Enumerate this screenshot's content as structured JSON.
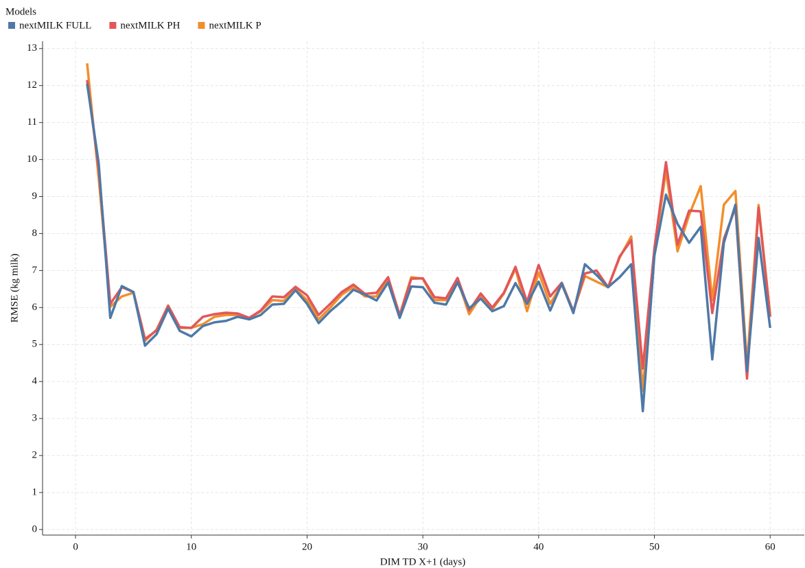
{
  "chart_data": {
    "type": "line",
    "legend_title": "Models",
    "x_label": "DIM TD X+1 (days)",
    "y_label": "RMSE (kg milk)",
    "x": [
      1,
      2,
      3,
      4,
      5,
      6,
      7,
      8,
      9,
      10,
      11,
      12,
      13,
      14,
      15,
      16,
      17,
      18,
      19,
      20,
      21,
      22,
      23,
      24,
      25,
      26,
      27,
      28,
      29,
      30,
      31,
      32,
      33,
      34,
      35,
      36,
      37,
      38,
      39,
      40,
      41,
      42,
      43,
      44,
      45,
      46,
      47,
      48,
      49,
      50,
      51,
      52,
      53,
      54,
      55,
      56,
      57,
      58,
      59,
      60
    ],
    "series": [
      {
        "name": "nextMILK FULL",
        "color": "#4e79a7",
        "values": [
          12.05,
          9.9,
          5.72,
          6.58,
          6.42,
          4.97,
          5.28,
          5.97,
          5.37,
          5.22,
          5.5,
          5.6,
          5.64,
          5.75,
          5.68,
          5.8,
          6.08,
          6.1,
          6.47,
          6.1,
          5.58,
          5.9,
          6.17,
          6.48,
          6.35,
          6.19,
          6.68,
          5.72,
          6.57,
          6.55,
          6.13,
          6.08,
          6.68,
          5.98,
          6.24,
          5.9,
          6.04,
          6.66,
          6.1,
          6.7,
          5.92,
          6.65,
          5.85,
          7.17,
          6.88,
          6.55,
          6.82,
          7.17,
          3.2,
          7.4,
          9.05,
          8.26,
          7.75,
          8.18,
          4.6,
          7.75,
          8.78,
          4.28,
          7.88,
          5.45
        ]
      },
      {
        "name": "nextMILK PH",
        "color": "#e15759",
        "values": [
          12.15,
          9.75,
          6.1,
          6.55,
          6.42,
          5.15,
          5.38,
          6.05,
          5.47,
          5.45,
          5.75,
          5.82,
          5.86,
          5.84,
          5.72,
          5.92,
          6.3,
          6.28,
          6.56,
          6.33,
          5.8,
          6.1,
          6.42,
          6.62,
          6.37,
          6.4,
          6.82,
          5.78,
          6.78,
          6.79,
          6.28,
          6.25,
          6.8,
          5.92,
          6.38,
          6.0,
          6.4,
          7.1,
          6.15,
          7.15,
          6.3,
          6.67,
          5.9,
          6.92,
          7.0,
          6.55,
          7.38,
          7.82,
          4.35,
          7.6,
          9.93,
          7.7,
          8.62,
          8.6,
          5.85,
          7.85,
          8.7,
          4.08,
          8.7,
          5.75
        ]
      },
      {
        "name": "nextMILK P",
        "color": "#f28e2b",
        "values": [
          12.6,
          9.5,
          6.02,
          6.3,
          6.4,
          5.1,
          5.4,
          6.05,
          5.45,
          5.45,
          5.55,
          5.75,
          5.8,
          5.8,
          5.72,
          5.9,
          6.2,
          6.18,
          6.5,
          6.2,
          5.68,
          6.0,
          6.35,
          6.55,
          6.3,
          6.3,
          6.78,
          5.8,
          6.82,
          6.78,
          6.2,
          6.2,
          6.75,
          5.82,
          6.3,
          5.95,
          6.38,
          7.05,
          5.9,
          6.95,
          6.1,
          6.62,
          5.9,
          6.85,
          6.7,
          6.55,
          7.35,
          7.92,
          3.75,
          7.5,
          9.7,
          7.52,
          8.5,
          9.28,
          6.2,
          8.78,
          9.15,
          4.45,
          8.77,
          5.8
        ]
      }
    ],
    "xlim": [
      -2.85,
      62.95
    ],
    "ylim": [
      -0.15,
      13.2
    ],
    "xticks": [
      0,
      10,
      20,
      30,
      40,
      50,
      60
    ],
    "yticks": [
      0,
      1,
      2,
      3,
      4,
      5,
      6,
      7,
      8,
      9,
      10,
      11,
      12,
      13
    ],
    "grid": true
  }
}
